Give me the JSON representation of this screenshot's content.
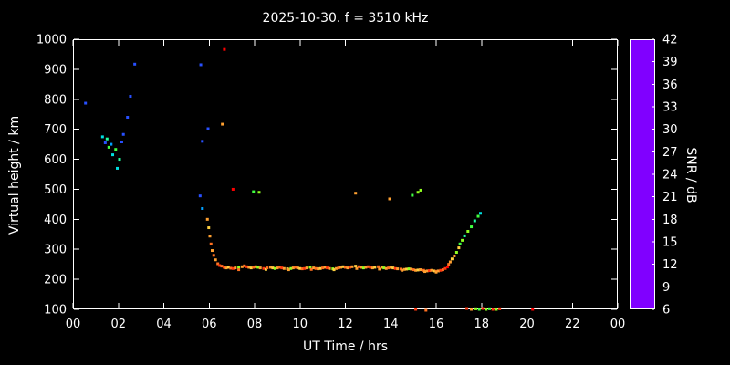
{
  "title": "2025-10-30. f = 3510 kHz",
  "chart_data": {
    "type": "scatter",
    "title": "2025-10-30. f = 3510 kHz",
    "xlabel": "UT Time / hrs",
    "ylabel": "Virtual height / km",
    "xlim": [
      0,
      24
    ],
    "ylim": [
      100,
      1000
    ],
    "grid": false,
    "marker": "square",
    "marker_size_px": 3,
    "background_color": "#000000",
    "frame_color": "#FFFFFF",
    "text_color": "#FFFFFF",
    "x_tick_values": [
      0,
      2,
      4,
      6,
      8,
      10,
      12,
      14,
      16,
      18,
      20,
      22,
      24
    ],
    "x_tick_labels": [
      "00",
      "02",
      "04",
      "06",
      "08",
      "10",
      "12",
      "14",
      "16",
      "18",
      "20",
      "22",
      "00"
    ],
    "y_tick_values": [
      100,
      200,
      300,
      400,
      500,
      600,
      700,
      800,
      900,
      1000
    ],
    "y_tick_labels": [
      "100",
      "200",
      "300",
      "400",
      "500",
      "600",
      "700",
      "800",
      "900",
      "1000"
    ],
    "colorbar": {
      "label": "SNR / dB",
      "min": 6,
      "max": 42,
      "tick_values": [
        6,
        9,
        12,
        15,
        18,
        21,
        24,
        27,
        30,
        33,
        36,
        39,
        42
      ],
      "tick_labels": [
        "6",
        "9",
        "12",
        "15",
        "18",
        "21",
        "24",
        "27",
        "30",
        "33",
        "36",
        "39",
        "42"
      ],
      "stops": [
        {
          "value": 6,
          "color": "#8000FF"
        },
        {
          "value": 9,
          "color": "#4028FF"
        },
        {
          "value": 12,
          "color": "#2850FF"
        },
        {
          "value": 15,
          "color": "#00A0FF"
        },
        {
          "value": 18,
          "color": "#00E0E0"
        },
        {
          "value": 21,
          "color": "#20FFA0"
        },
        {
          "value": 24,
          "color": "#40FF40"
        },
        {
          "value": 27,
          "color": "#90FF20"
        },
        {
          "value": 30,
          "color": "#FFD040"
        },
        {
          "value": 33,
          "color": "#FFA030"
        },
        {
          "value": 36,
          "color": "#FF7020"
        },
        {
          "value": 39,
          "color": "#FF3810"
        },
        {
          "value": 42,
          "color": "#FF0000"
        }
      ]
    },
    "points": [
      [
        0.55,
        787,
        12
      ],
      [
        1.3,
        675,
        18
      ],
      [
        1.42,
        655,
        12
      ],
      [
        1.5,
        668,
        21
      ],
      [
        1.58,
        640,
        24
      ],
      [
        1.68,
        650,
        15
      ],
      [
        1.75,
        615,
        18
      ],
      [
        1.88,
        633,
        24
      ],
      [
        1.95,
        570,
        18
      ],
      [
        2.05,
        600,
        21
      ],
      [
        2.15,
        658,
        12
      ],
      [
        2.22,
        683,
        12
      ],
      [
        2.4,
        740,
        12
      ],
      [
        2.53,
        810,
        12
      ],
      [
        2.72,
        917,
        12
      ],
      [
        5.63,
        915,
        12
      ],
      [
        5.7,
        660,
        12
      ],
      [
        5.95,
        702,
        12
      ],
      [
        6.58,
        717,
        33
      ],
      [
        6.67,
        966,
        42
      ],
      [
        5.6,
        478,
        12
      ],
      [
        5.7,
        436,
        15
      ],
      [
        5.92,
        400,
        33
      ],
      [
        5.98,
        372,
        30
      ],
      [
        6.03,
        344,
        33
      ],
      [
        6.08,
        318,
        36
      ],
      [
        6.13,
        296,
        33
      ],
      [
        6.2,
        280,
        36
      ],
      [
        6.28,
        265,
        33
      ],
      [
        6.38,
        252,
        36
      ],
      [
        6.46,
        246,
        39
      ],
      [
        6.55,
        244,
        36
      ],
      [
        6.65,
        240,
        39
      ],
      [
        6.75,
        238,
        33
      ],
      [
        6.85,
        240,
        30
      ],
      [
        6.95,
        237,
        36
      ],
      [
        7.05,
        236,
        39
      ],
      [
        7.15,
        238,
        33
      ],
      [
        7.3,
        240,
        27
      ],
      [
        7.3,
        232,
        36
      ],
      [
        7.45,
        242,
        33
      ],
      [
        7.55,
        245,
        36
      ],
      [
        7.65,
        242,
        39
      ],
      [
        7.75,
        240,
        33
      ],
      [
        7.85,
        238,
        30
      ],
      [
        7.95,
        240,
        36
      ],
      [
        8.05,
        242,
        33
      ],
      [
        8.15,
        240,
        27
      ],
      [
        8.25,
        238,
        33
      ],
      [
        8.4,
        236,
        39
      ],
      [
        8.5,
        233,
        30
      ],
      [
        8.55,
        238,
        36
      ],
      [
        8.7,
        240,
        33
      ],
      [
        8.8,
        238,
        30
      ],
      [
        8.9,
        236,
        27
      ],
      [
        9.0,
        238,
        33
      ],
      [
        9.1,
        240,
        36
      ],
      [
        9.2,
        238,
        39
      ],
      [
        9.3,
        236,
        33
      ],
      [
        9.45,
        235,
        30
      ],
      [
        9.5,
        232,
        33
      ],
      [
        9.6,
        236,
        27
      ],
      [
        9.7,
        238,
        33
      ],
      [
        9.8,
        240,
        36
      ],
      [
        9.9,
        238,
        33
      ],
      [
        10.0,
        236,
        30
      ],
      [
        10.1,
        235,
        36
      ],
      [
        10.2,
        236,
        39
      ],
      [
        10.3,
        238,
        33
      ],
      [
        10.45,
        240,
        27
      ],
      [
        10.5,
        233,
        36
      ],
      [
        10.6,
        238,
        33
      ],
      [
        10.7,
        236,
        36
      ],
      [
        10.8,
        235,
        33
      ],
      [
        10.9,
        236,
        30
      ],
      [
        11.0,
        238,
        36
      ],
      [
        11.1,
        240,
        33
      ],
      [
        11.2,
        238,
        39
      ],
      [
        11.3,
        236,
        33
      ],
      [
        11.45,
        235,
        27
      ],
      [
        11.5,
        232,
        30
      ],
      [
        11.6,
        236,
        33
      ],
      [
        11.7,
        238,
        36
      ],
      [
        11.8,
        240,
        33
      ],
      [
        11.9,
        242,
        30
      ],
      [
        12.0,
        240,
        36
      ],
      [
        12.1,
        238,
        33
      ],
      [
        12.2,
        240,
        39
      ],
      [
        12.3,
        242,
        33
      ],
      [
        12.45,
        244,
        30
      ],
      [
        12.5,
        236,
        33
      ],
      [
        12.6,
        242,
        36
      ],
      [
        12.7,
        240,
        33
      ],
      [
        12.8,
        238,
        27
      ],
      [
        12.9,
        240,
        33
      ],
      [
        13.0,
        242,
        36
      ],
      [
        13.1,
        240,
        39
      ],
      [
        13.2,
        238,
        33
      ],
      [
        13.3,
        240,
        30
      ],
      [
        13.45,
        242,
        36
      ],
      [
        13.5,
        234,
        33
      ],
      [
        13.6,
        240,
        33
      ],
      [
        13.7,
        238,
        27
      ],
      [
        13.8,
        236,
        33
      ],
      [
        13.9,
        238,
        36
      ],
      [
        14.0,
        240,
        33
      ],
      [
        14.1,
        238,
        30
      ],
      [
        14.2,
        236,
        39
      ],
      [
        14.3,
        235,
        33
      ],
      [
        14.45,
        234,
        36
      ],
      [
        14.5,
        230,
        33
      ],
      [
        14.6,
        233,
        33
      ],
      [
        14.7,
        234,
        30
      ],
      [
        14.8,
        235,
        27
      ],
      [
        14.9,
        234,
        33
      ],
      [
        15.0,
        232,
        36
      ],
      [
        15.1,
        230,
        33
      ],
      [
        15.2,
        231,
        30
      ],
      [
        15.3,
        232,
        33
      ],
      [
        15.45,
        230,
        36
      ],
      [
        15.5,
        226,
        33
      ],
      [
        15.6,
        228,
        33
      ],
      [
        15.7,
        229,
        39
      ],
      [
        15.8,
        230,
        33
      ],
      [
        15.9,
        228,
        30
      ],
      [
        16.0,
        227,
        36
      ],
      [
        16.0,
        224,
        33
      ],
      [
        16.1,
        228,
        33
      ],
      [
        16.2,
        230,
        39
      ],
      [
        16.3,
        232,
        36
      ],
      [
        16.4,
        236,
        39
      ],
      [
        16.5,
        241,
        42
      ],
      [
        16.55,
        250,
        36
      ],
      [
        16.62,
        258,
        33
      ],
      [
        16.7,
        268,
        30
      ],
      [
        16.8,
        278,
        33
      ],
      [
        16.9,
        290,
        27
      ],
      [
        17.0,
        305,
        30
      ],
      [
        17.05,
        318,
        24
      ],
      [
        17.15,
        330,
        27
      ],
      [
        17.25,
        345,
        21
      ],
      [
        17.4,
        360,
        27
      ],
      [
        17.55,
        375,
        24
      ],
      [
        17.7,
        395,
        21
      ],
      [
        17.85,
        410,
        24
      ],
      [
        17.95,
        420,
        18
      ],
      [
        7.05,
        500,
        42
      ],
      [
        7.95,
        492,
        24
      ],
      [
        8.2,
        490,
        27
      ],
      [
        12.45,
        487,
        33
      ],
      [
        13.95,
        468,
        33
      ],
      [
        14.95,
        480,
        24
      ],
      [
        15.2,
        490,
        27
      ],
      [
        15.32,
        497,
        27
      ],
      [
        15.1,
        100,
        39
      ],
      [
        15.55,
        97,
        36
      ],
      [
        17.35,
        103,
        39
      ],
      [
        17.55,
        100,
        33
      ],
      [
        17.75,
        102,
        27
      ],
      [
        17.9,
        100,
        24
      ],
      [
        18.05,
        103,
        39
      ],
      [
        18.2,
        100,
        27
      ],
      [
        18.35,
        102,
        24
      ],
      [
        18.5,
        100,
        39
      ],
      [
        18.65,
        100,
        27
      ],
      [
        18.8,
        102,
        39
      ],
      [
        20.25,
        100,
        42
      ]
    ]
  }
}
